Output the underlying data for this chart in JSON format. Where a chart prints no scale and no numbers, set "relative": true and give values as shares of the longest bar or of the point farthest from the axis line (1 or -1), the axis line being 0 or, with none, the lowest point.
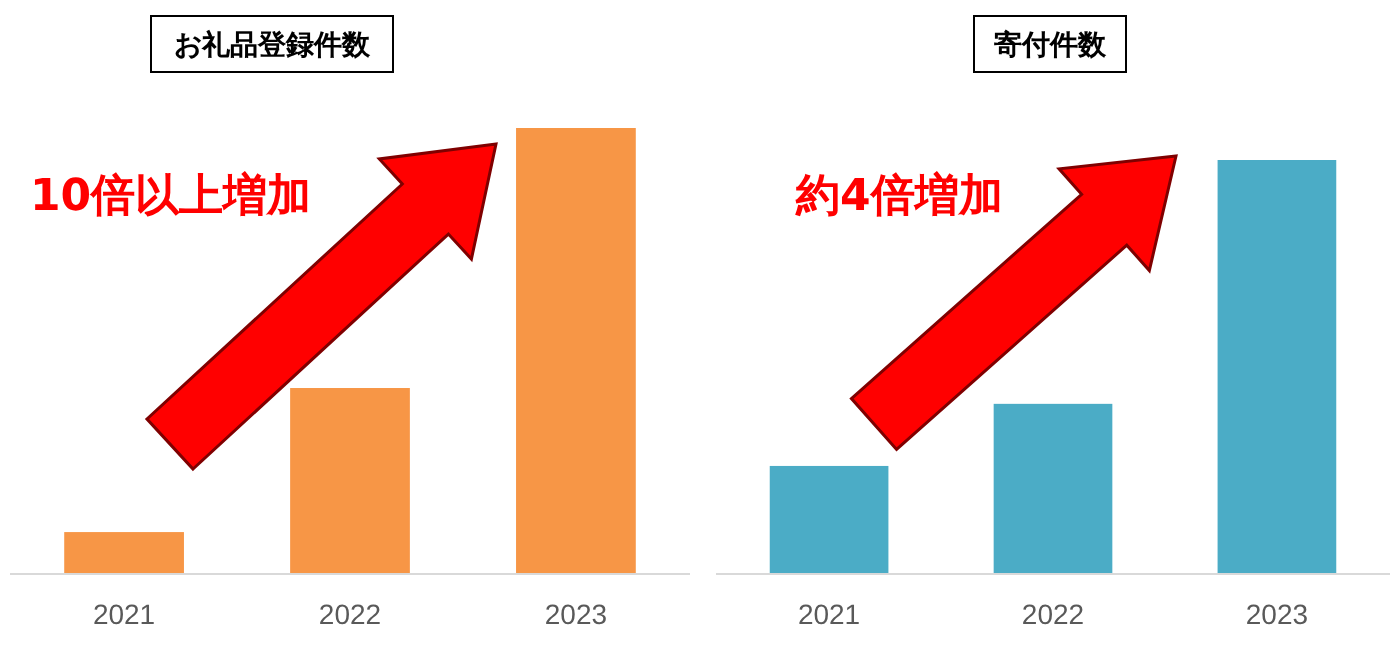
{
  "chart_data": [
    {
      "type": "bar",
      "title": "お礼品登録件数",
      "categories": [
        "2021",
        "2022",
        "2023"
      ],
      "values": [
        0.094,
        0.417,
        1
      ],
      "color": "#f79646",
      "relative": true,
      "annotations": [
        "10倍以上増加"
      ]
    },
    {
      "type": "bar",
      "title": "寄付件数",
      "categories": [
        "2021",
        "2022",
        "2023"
      ],
      "values": [
        0.261,
        0.411,
        1
      ],
      "color": "#4bacc6",
      "relative": true,
      "annotations": [
        "約4倍増加"
      ]
    }
  ]
}
